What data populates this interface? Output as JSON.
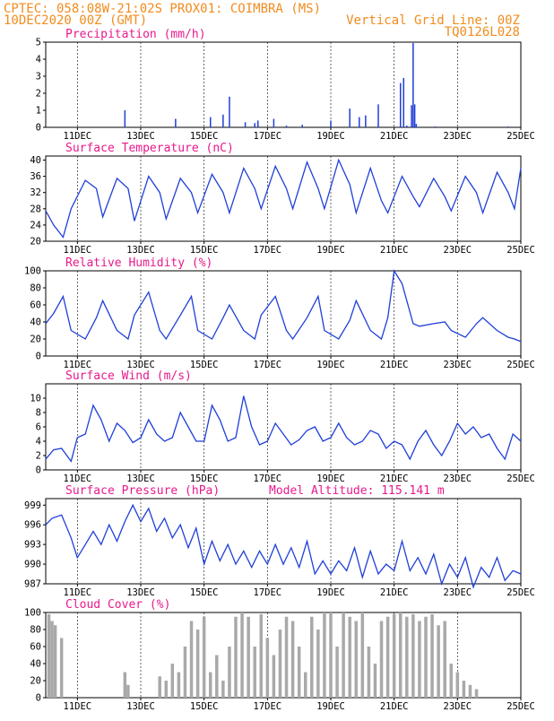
{
  "header": {
    "line1_left": "CPTEC:   058:08W-21:02S   PROX01: COIMBRA (MS)",
    "line2_left": "10DEC2020 00Z (GMT)",
    "line2_right": "Vertical Grid Line: 00Z",
    "line3_right": "TQ0126L028"
  },
  "chart_data": [
    {
      "type": "bar",
      "title": "Precipitation (mm/h)",
      "series_color": "#1f3fd8",
      "ylim": [
        0,
        5
      ],
      "yticks": [
        "0",
        "1",
        "2",
        "3",
        "4",
        "5"
      ],
      "xlim": [
        0,
        15
      ],
      "xtick_labels": [
        "11DEC",
        "13DEC",
        "15DEC",
        "17DEC",
        "19DEC",
        "21DEC",
        "23DEC",
        "25DEC"
      ],
      "x": [
        2.5,
        4.1,
        5.2,
        5.6,
        5.8,
        6.3,
        6.6,
        6.7,
        7.2,
        7.6,
        8.1,
        9.0,
        9.6,
        9.9,
        10.1,
        10.5,
        11.2,
        11.3,
        11.4,
        11.55,
        11.6,
        11.65,
        11.7,
        12.3,
        14.6
      ],
      "values": [
        1.0,
        0.5,
        0.6,
        0.75,
        1.8,
        0.3,
        0.25,
        0.4,
        0.5,
        0.1,
        0.15,
        0.4,
        1.1,
        0.6,
        0.7,
        1.35,
        2.6,
        2.9,
        0.1,
        1.3,
        4.95,
        1.35,
        0.2,
        0.05,
        0.05
      ]
    },
    {
      "type": "line",
      "title": "Surface Temperature (nC)",
      "series_color": "#1f3fd8",
      "ylim": [
        20,
        41
      ],
      "yticks": [
        "20",
        "24",
        "28",
        "32",
        "36",
        "40"
      ],
      "xlim": [
        0,
        15
      ],
      "xtick_labels": [
        "11DEC",
        "13DEC",
        "15DEC",
        "17DEC",
        "19DEC",
        "21DEC",
        "23DEC",
        "25DEC"
      ],
      "x": [
        0,
        0.25,
        0.55,
        0.8,
        1.25,
        1.6,
        1.8,
        2.25,
        2.6,
        2.8,
        3.25,
        3.6,
        3.8,
        4.25,
        4.6,
        4.8,
        5.25,
        5.6,
        5.8,
        6.25,
        6.6,
        6.8,
        7.25,
        7.6,
        7.8,
        8.25,
        8.6,
        8.8,
        9.25,
        9.6,
        9.8,
        10.25,
        10.6,
        10.8,
        11.25,
        11.6,
        11.8,
        12.25,
        12.6,
        12.8,
        13.25,
        13.6,
        13.8,
        14.25,
        14.6,
        14.8,
        15
      ],
      "values": [
        27.5,
        24,
        21,
        28,
        35,
        33,
        26,
        35.5,
        33,
        25,
        36,
        32,
        25.5,
        35.5,
        32,
        27,
        36.5,
        32,
        27,
        38,
        33,
        28,
        38.5,
        33,
        28,
        39.5,
        33,
        28,
        40,
        34,
        27,
        38,
        30,
        27,
        36,
        31,
        28.5,
        35.5,
        31,
        27.5,
        36,
        32,
        27,
        37,
        32,
        28,
        38
      ]
    },
    {
      "type": "line",
      "title": "Relative Humidity (%)",
      "series_color": "#1f3fd8",
      "ylim": [
        0,
        100
      ],
      "yticks": [
        "0",
        "20",
        "40",
        "60",
        "80",
        "100"
      ],
      "xlim": [
        0,
        15
      ],
      "xtick_labels": [
        "11DEC",
        "13DEC",
        "15DEC",
        "17DEC",
        "19DEC",
        "21DEC",
        "23DEC",
        "25DEC"
      ],
      "x": [
        0,
        0.25,
        0.55,
        0.8,
        1.25,
        1.6,
        1.8,
        2.25,
        2.6,
        2.8,
        3.25,
        3.6,
        3.8,
        4.25,
        4.6,
        4.8,
        5.25,
        5.6,
        5.8,
        6.25,
        6.6,
        6.8,
        7.25,
        7.6,
        7.8,
        8.25,
        8.6,
        8.8,
        9.25,
        9.6,
        9.8,
        10.25,
        10.6,
        10.8,
        11.0,
        11.25,
        11.6,
        11.8,
        12.25,
        12.6,
        12.8,
        13.25,
        13.6,
        13.8,
        14.25,
        14.6,
        14.8,
        15
      ],
      "values": [
        38,
        50,
        70,
        30,
        20,
        45,
        65,
        30,
        20,
        48,
        75,
        30,
        20,
        48,
        70,
        30,
        20,
        45,
        60,
        30,
        20,
        48,
        70,
        30,
        20,
        45,
        70,
        30,
        20,
        42,
        65,
        30,
        20,
        45,
        100,
        85,
        38,
        35,
        38,
        40,
        30,
        22,
        38,
        45,
        30,
        22,
        20,
        17
      ]
    },
    {
      "type": "line",
      "title": "Surface Wind (m/s)",
      "series_color": "#1f3fd8",
      "ylim": [
        0,
        12
      ],
      "yticks": [
        "0",
        "2",
        "4",
        "6",
        "8",
        "10"
      ],
      "xlim": [
        0,
        15
      ],
      "xtick_labels": [
        "11DEC",
        "13DEC",
        "15DEC",
        "17DEC",
        "19DEC",
        "21DEC",
        "23DEC",
        "25DEC"
      ],
      "x": [
        0,
        0.25,
        0.5,
        0.8,
        1.0,
        1.25,
        1.5,
        1.75,
        2.0,
        2.25,
        2.5,
        2.75,
        3.0,
        3.25,
        3.5,
        3.75,
        4.0,
        4.25,
        4.5,
        4.75,
        5.0,
        5.25,
        5.5,
        5.75,
        6.0,
        6.25,
        6.5,
        6.75,
        7.0,
        7.25,
        7.5,
        7.75,
        8.0,
        8.25,
        8.5,
        8.75,
        9.0,
        9.25,
        9.5,
        9.75,
        10.0,
        10.25,
        10.5,
        10.75,
        11.0,
        11.25,
        11.5,
        11.75,
        12.0,
        12.25,
        12.5,
        12.75,
        13.0,
        13.25,
        13.5,
        13.75,
        14.0,
        14.25,
        14.5,
        14.75,
        15
      ],
      "values": [
        1.5,
        2.8,
        3.0,
        1.2,
        4.5,
        5.0,
        9.0,
        7.0,
        4.0,
        6.5,
        5.5,
        3.8,
        4.5,
        7.0,
        5.0,
        4.0,
        4.5,
        8.0,
        6.0,
        4.0,
        4.0,
        9.0,
        7.0,
        4.0,
        4.5,
        10.3,
        6.0,
        3.5,
        4.0,
        6.5,
        5.0,
        3.5,
        4.2,
        5.5,
        6.0,
        4.0,
        4.5,
        6.5,
        4.5,
        3.5,
        4.0,
        5.5,
        5.0,
        3.0,
        4.0,
        3.5,
        1.5,
        4.0,
        5.5,
        3.5,
        2.0,
        4.0,
        6.5,
        5.0,
        6.0,
        4.5,
        5.0,
        3.0,
        1.5,
        5.0,
        4.0
      ]
    },
    {
      "type": "line",
      "title": "Surface Pressure (hPa)",
      "annotation": "Model Altitude: 115.141 m",
      "series_color": "#1f3fd8",
      "ylim": [
        987,
        1000
      ],
      "yticks": [
        "987",
        "990",
        "993",
        "996",
        "999"
      ],
      "xlim": [
        0,
        15
      ],
      "xtick_labels": [
        "11DEC",
        "13DEC",
        "15DEC",
        "17DEC",
        "19DEC",
        "21DEC",
        "23DEC",
        "25DEC"
      ],
      "x": [
        0,
        0.2,
        0.5,
        0.8,
        1.0,
        1.25,
        1.5,
        1.75,
        2.0,
        2.25,
        2.5,
        2.75,
        3.0,
        3.25,
        3.5,
        3.75,
        4.0,
        4.25,
        4.5,
        4.75,
        5.0,
        5.25,
        5.5,
        5.75,
        6.0,
        6.25,
        6.5,
        6.75,
        7.0,
        7.25,
        7.5,
        7.75,
        8.0,
        8.25,
        8.5,
        8.75,
        9.0,
        9.25,
        9.5,
        9.75,
        10.0,
        10.25,
        10.5,
        10.75,
        11.0,
        11.25,
        11.5,
        11.75,
        12.0,
        12.25,
        12.5,
        12.75,
        13.0,
        13.25,
        13.5,
        13.75,
        14.0,
        14.25,
        14.5,
        14.75,
        15
      ],
      "values": [
        996,
        997,
        997.5,
        994,
        991,
        993,
        995,
        993,
        996,
        993.5,
        996.5,
        999,
        996.5,
        998.5,
        995,
        997,
        994,
        996,
        992.5,
        995.5,
        990,
        993.5,
        990.5,
        993,
        990,
        992,
        989.5,
        992,
        990,
        993,
        990,
        992.5,
        989.5,
        993.5,
        988.5,
        990.5,
        988.5,
        990.5,
        989,
        992.5,
        988,
        992,
        988.5,
        990,
        989,
        993.5,
        989,
        991,
        988.5,
        991.5,
        987,
        990,
        988,
        991,
        986.5,
        989.5,
        988,
        991,
        987.5,
        989,
        988.5
      ]
    },
    {
      "type": "bar",
      "title": "Cloud Cover (%)",
      "series_color": "#a9a9a9",
      "ylim": [
        0,
        100
      ],
      "yticks": [
        "0",
        "20",
        "40",
        "60",
        "80",
        "100"
      ],
      "xlim": [
        0,
        15
      ],
      "xtick_labels": [
        "11DEC",
        "13DEC",
        "15DEC",
        "17DEC",
        "19DEC",
        "21DEC",
        "23DEC",
        "25DEC"
      ],
      "x": [
        0.1,
        0.2,
        0.3,
        0.5,
        2.5,
        2.6,
        3.6,
        3.8,
        4.0,
        4.2,
        4.4,
        4.6,
        4.8,
        5.0,
        5.2,
        5.4,
        5.6,
        5.8,
        6.0,
        6.2,
        6.4,
        6.6,
        6.8,
        7.0,
        7.2,
        7.4,
        7.6,
        7.8,
        8.0,
        8.2,
        8.4,
        8.6,
        8.8,
        9.0,
        9.2,
        9.4,
        9.6,
        9.8,
        10.0,
        10.2,
        10.4,
        10.6,
        10.8,
        11.0,
        11.2,
        11.4,
        11.6,
        11.8,
        12.0,
        12.2,
        12.4,
        12.6,
        12.8,
        13.0,
        13.2,
        13.4,
        13.6
      ],
      "values": [
        98,
        90,
        85,
        70,
        30,
        15,
        25,
        20,
        40,
        30,
        60,
        90,
        80,
        95,
        30,
        50,
        20,
        60,
        95,
        100,
        95,
        60,
        98,
        70,
        50,
        80,
        95,
        90,
        60,
        30,
        95,
        80,
        100,
        100,
        60,
        100,
        95,
        90,
        100,
        60,
        40,
        90,
        95,
        98,
        100,
        95,
        98,
        90,
        95,
        98,
        85,
        90,
        40,
        30,
        20,
        15,
        10
      ]
    }
  ]
}
